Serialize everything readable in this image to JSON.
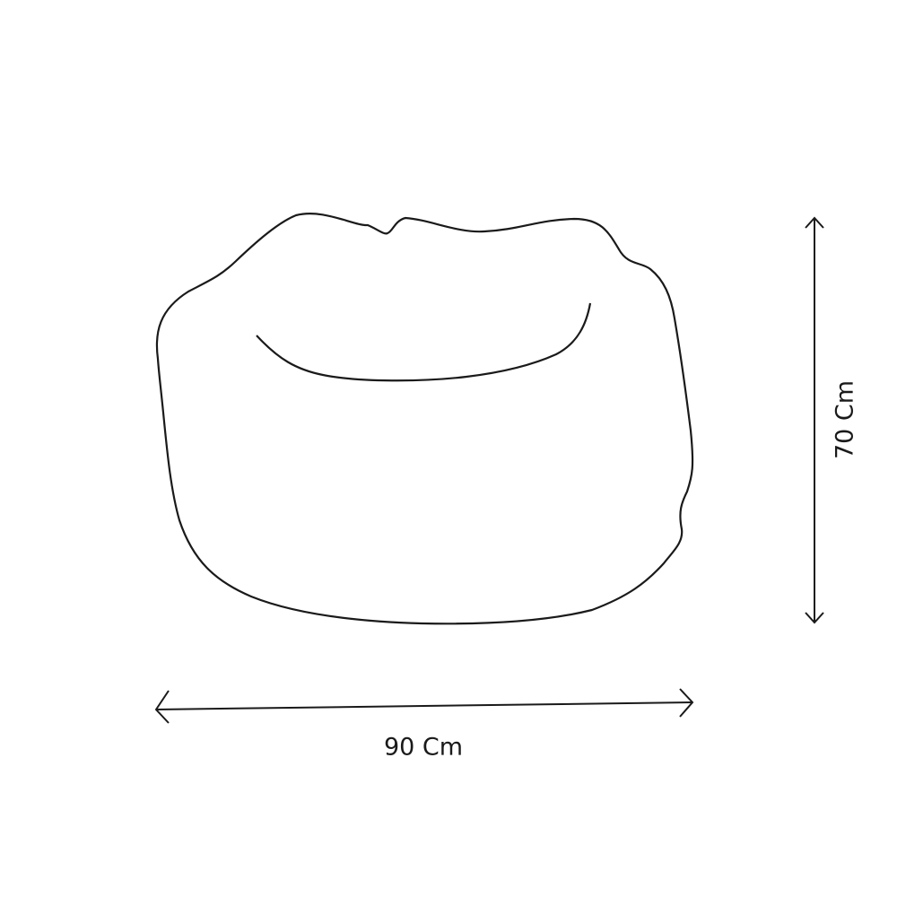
{
  "dimensions": {
    "width_label": "90 Cm",
    "height_label": "70 Cm"
  },
  "colors": {
    "stroke": "#1a1a1a",
    "background": "#ffffff"
  }
}
